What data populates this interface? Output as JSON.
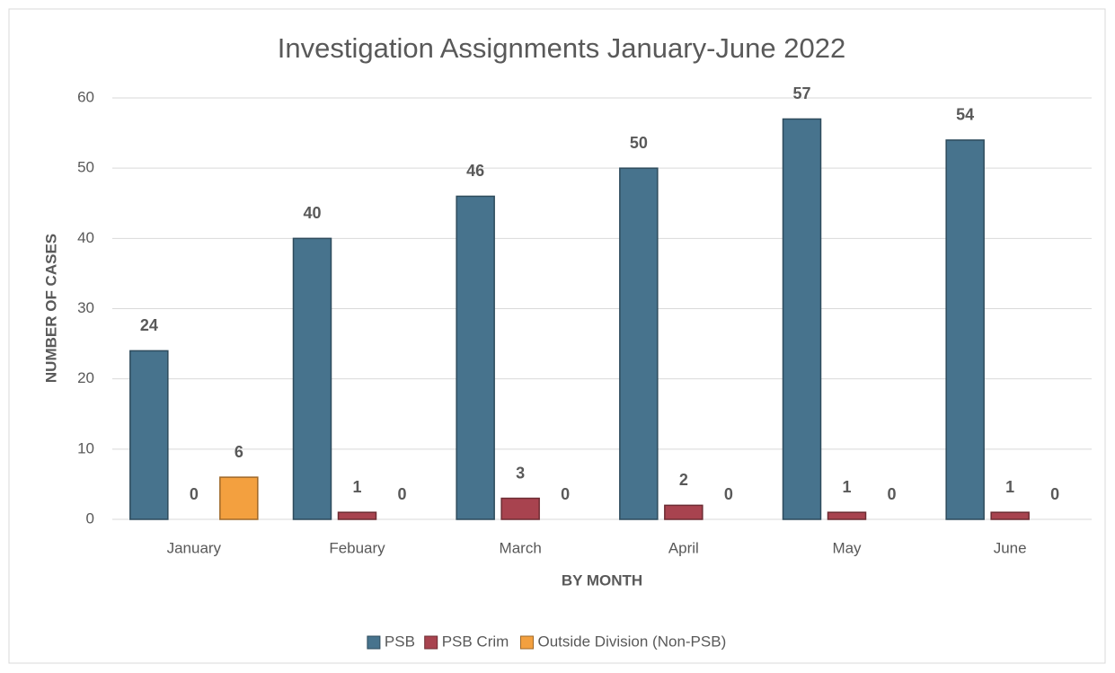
{
  "chart_data": {
    "type": "bar",
    "title": "Investigation Assignments January-June 2022",
    "x_label": "BY MONTH",
    "y_label": "NUMBER OF CASES",
    "categories": [
      "January",
      "Febuary",
      "March",
      "April",
      "May",
      "June"
    ],
    "series": [
      {
        "name": "PSB",
        "color": "#47738d",
        "values": [
          24,
          40,
          46,
          50,
          57,
          54
        ]
      },
      {
        "name": "PSB Crim",
        "color": "#a8434f",
        "values": [
          0,
          1,
          3,
          2,
          1,
          1
        ]
      },
      {
        "name": "Outside Division (Non-PSB)",
        "color": "#f3a03f",
        "values": [
          6,
          0,
          0,
          0,
          0,
          0
        ]
      }
    ],
    "ylim": [
      0,
      60
    ],
    "yticks": [
      0,
      10,
      20,
      30,
      40,
      50,
      60
    ],
    "grid": true,
    "legend": "bottom"
  }
}
